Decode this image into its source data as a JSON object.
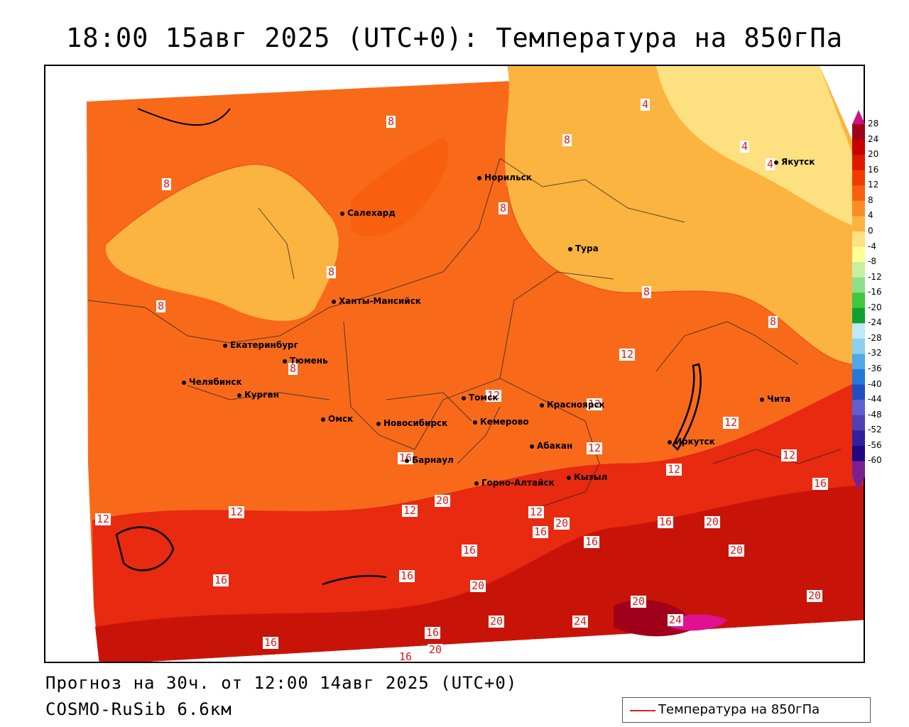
{
  "header": {
    "title": "18:00 15авг 2025 (UTC+0): Температура на 850гПа"
  },
  "footer": {
    "forecast": "Прогноз на 30ч. от 12:00 14авг 2025 (UTC+0)",
    "model": "COSMO-RuSib 6.6км"
  },
  "legend": {
    "label": "Температура на 850гПа",
    "line_color": "#e02020"
  },
  "colorbar": {
    "ticks": [
      "28",
      "24",
      "20",
      "16",
      "12",
      "8",
      "4",
      "0",
      "-4",
      "-8",
      "-12",
      "-16",
      "-20",
      "-24",
      "-28",
      "-32",
      "-36",
      "-40",
      "-44",
      "-48",
      "-52",
      "-56",
      "-60"
    ],
    "colors": [
      "#a0001a",
      "#c80000",
      "#e01800",
      "#f03c00",
      "#f86010",
      "#fa8c28",
      "#fcb440",
      "#fde080",
      "#ffff9a",
      "#c8f0a0",
      "#8ce08c",
      "#40c840",
      "#10a030",
      "#bfe8f8",
      "#8cd0f0",
      "#50a8e8",
      "#2878d8",
      "#2050c0",
      "#6060d0",
      "#5040b0",
      "#3020a0",
      "#200880",
      "#7a2090"
    ]
  },
  "cities": [
    {
      "name": "Норильск"
    },
    {
      "name": "Якутск"
    },
    {
      "name": "Салехард"
    },
    {
      "name": "Тура"
    },
    {
      "name": "Ханты-Мансийск"
    },
    {
      "name": "Екатеринбург"
    },
    {
      "name": "Тюмень"
    },
    {
      "name": "Челябинск"
    },
    {
      "name": "Курган"
    },
    {
      "name": "Томск"
    },
    {
      "name": "Красноярск"
    },
    {
      "name": "Чита"
    },
    {
      "name": "Омск"
    },
    {
      "name": "Новосибирск"
    },
    {
      "name": "Кемерово"
    },
    {
      "name": "Абакан"
    },
    {
      "name": "Иркутск"
    },
    {
      "name": "Барнаул"
    },
    {
      "name": "Горно-Алтайск"
    },
    {
      "name": "Кызыл"
    }
  ],
  "contour_labels": [
    "4",
    "4",
    "4",
    "8",
    "8",
    "8",
    "8",
    "8",
    "8",
    "8",
    "8",
    "8",
    "12",
    "12",
    "12",
    "12",
    "12",
    "12",
    "12",
    "12",
    "12",
    "12",
    "12",
    "16",
    "16",
    "16",
    "16",
    "16",
    "16",
    "16",
    "16",
    "20",
    "20",
    "20",
    "20",
    "20",
    "20",
    "20",
    "20",
    "24",
    "24",
    "16",
    "16",
    "16",
    "20"
  ]
}
